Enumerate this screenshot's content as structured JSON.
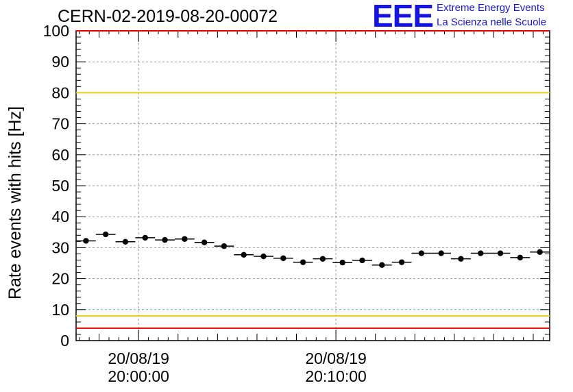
{
  "header": {
    "run_id": "CERN-02-2019-08-20-00072"
  },
  "logo": {
    "mark": "EEE",
    "line1": "Extreme Energy Events",
    "line2": "La Scienza nelle Scuole"
  },
  "colors": {
    "logo_blue": "#1414e6",
    "threshold_red": "#e60000",
    "threshold_yellow": "#f2c80f",
    "grid": "#9a9a9a",
    "marker": "#000000"
  },
  "chart_data": {
    "type": "scatter",
    "ylabel": "Rate events with hits [Hz]",
    "ylim": [
      0,
      100
    ],
    "yticks": [
      0,
      10,
      20,
      30,
      40,
      50,
      60,
      70,
      80,
      90,
      100
    ],
    "xlim": [
      "2019-08-20 19:56:50",
      "2019-08-20 20:20:50"
    ],
    "xticks": [
      {
        "date": "20/08/19",
        "time": "20:00:00"
      },
      {
        "date": "20/08/19",
        "time": "20:10:00"
      }
    ],
    "grid": true,
    "thresholds": [
      {
        "value": 100,
        "color": "red"
      },
      {
        "value": 80,
        "color": "yellow"
      },
      {
        "value": 8,
        "color": "yellow"
      },
      {
        "value": 4,
        "color": "red"
      }
    ],
    "bin_width_seconds": 60,
    "series": [
      {
        "x": [
          "19:57:20",
          "19:58:20",
          "19:59:20",
          "20:00:20",
          "20:01:20",
          "20:02:20",
          "20:03:20",
          "20:04:20",
          "20:05:20",
          "20:06:20",
          "20:07:20",
          "20:08:20",
          "20:09:20",
          "20:10:20",
          "20:11:20",
          "20:12:20",
          "20:13:20",
          "20:14:20",
          "20:15:20",
          "20:16:20",
          "20:17:20",
          "20:18:20",
          "20:19:20",
          "20:20:20"
        ],
        "y": [
          32.2,
          34.3,
          31.9,
          33.2,
          32.5,
          32.8,
          31.7,
          30.5,
          27.7,
          27.2,
          26.6,
          25.3,
          26.4,
          25.2,
          25.9,
          24.4,
          25.3,
          28.2,
          28.2,
          26.4,
          28.2,
          28.2,
          26.8,
          28.6
        ],
        "err": [
          0.6,
          0.6,
          0.6,
          0.6,
          0.6,
          0.6,
          0.6,
          0.6,
          0.6,
          0.6,
          0.6,
          0.6,
          0.6,
          0.6,
          0.6,
          0.6,
          0.6,
          0.6,
          0.6,
          0.6,
          0.6,
          0.6,
          0.6,
          0.6
        ]
      }
    ]
  }
}
